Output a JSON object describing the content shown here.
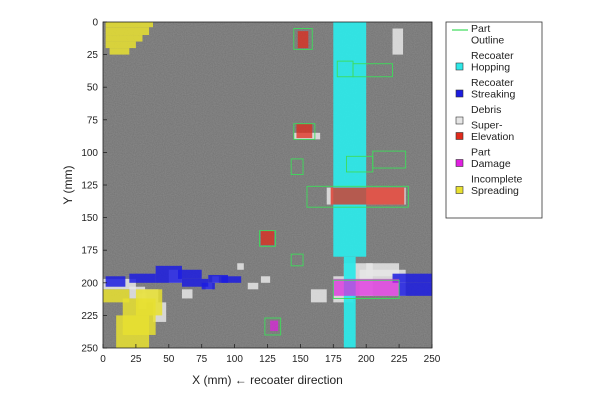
{
  "chart_data": {
    "type": "heatmap",
    "xlabel": "X (mm) ← recoater direction",
    "ylabel": "Y (mm)",
    "xlim": [
      0,
      250
    ],
    "ylim": [
      0,
      250
    ],
    "y_inverted": true,
    "x_ticks": [
      "0",
      "25",
      "50",
      "75",
      "100",
      "125",
      "150",
      "175",
      "200",
      "225",
      "250"
    ],
    "y_ticks": [
      "0",
      "25",
      "50",
      "75",
      "100",
      "125",
      "150",
      "175",
      "200",
      "225",
      "250"
    ],
    "legend_position": "right",
    "legend": [
      {
        "key": "part_outline",
        "lines": [
          "Part",
          "Outline"
        ],
        "color": "#3ddc5a",
        "marker": "line"
      },
      {
        "key": "recoater_hopping",
        "lines": [
          "Recoater",
          "Hopping"
        ],
        "color": "#2ee8e8",
        "marker": "square"
      },
      {
        "key": "recoater_streaking",
        "lines": [
          "Recoater",
          "Streaking"
        ],
        "color": "#1c1ce0",
        "marker": "square"
      },
      {
        "key": "debris",
        "lines": [
          "Debris"
        ],
        "color": "#e6e6e6",
        "marker": "square"
      },
      {
        "key": "super_elevation",
        "lines": [
          "Super-",
          "Elevation"
        ],
        "color": "#e02b1c",
        "marker": "square"
      },
      {
        "key": "part_damage",
        "lines": [
          "Part",
          "Damage"
        ],
        "color": "#e020e0",
        "marker": "square"
      },
      {
        "key": "incomplete_spreading",
        "lines": [
          "Incomplete",
          "Spreading"
        ],
        "color": "#e8e030",
        "marker": "square"
      }
    ],
    "regions": {
      "recoater_hopping": [
        [
          175,
          0,
          200,
          180
        ],
        [
          183,
          180,
          192,
          250
        ]
      ],
      "recoater_streaking": [
        [
          2,
          195,
          17,
          203
        ],
        [
          20,
          193,
          40,
          200
        ],
        [
          40,
          187,
          60,
          200
        ],
        [
          57,
          190,
          75,
          197
        ],
        [
          60,
          197,
          80,
          203
        ],
        [
          75,
          200,
          85,
          205
        ],
        [
          80,
          194,
          95,
          200
        ],
        [
          90,
          195,
          105,
          200
        ],
        [
          220,
          193,
          250,
          200
        ],
        [
          225,
          200,
          250,
          210
        ]
      ],
      "debris": [
        [
          0,
          197,
          25,
          205
        ],
        [
          20,
          203,
          32,
          212
        ],
        [
          27,
          208,
          33,
          220
        ],
        [
          30,
          205,
          42,
          215
        ],
        [
          38,
          215,
          48,
          230
        ],
        [
          50,
          190,
          60,
          200
        ],
        [
          60,
          205,
          68,
          212
        ],
        [
          78,
          200,
          83,
          205
        ],
        [
          83,
          195,
          88,
          200
        ],
        [
          102,
          185,
          107,
          190
        ],
        [
          110,
          200,
          118,
          205
        ],
        [
          120,
          195,
          127,
          200
        ],
        [
          183,
          185,
          205,
          210
        ],
        [
          175,
          195,
          190,
          215
        ],
        [
          195,
          190,
          230,
          210
        ],
        [
          200,
          185,
          225,
          195
        ],
        [
          170,
          127,
          230,
          140
        ],
        [
          145,
          85,
          165,
          90
        ],
        [
          220,
          5,
          228,
          25
        ],
        [
          158,
          205,
          170,
          215
        ]
      ],
      "super_elevation": [
        [
          148,
          7,
          156,
          20
        ],
        [
          147,
          78,
          159,
          89
        ],
        [
          120,
          160,
          130,
          171
        ],
        [
          173,
          127,
          229,
          140
        ]
      ],
      "part_damage": [
        [
          175,
          197,
          225,
          210
        ],
        [
          127,
          229,
          133,
          237
        ]
      ],
      "incomplete_spreading": [
        [
          2,
          0,
          38,
          4
        ],
        [
          2,
          4,
          35,
          10
        ],
        [
          2,
          10,
          30,
          15
        ],
        [
          2,
          15,
          25,
          20
        ],
        [
          5,
          20,
          20,
          25
        ],
        [
          10,
          225,
          35,
          250
        ],
        [
          15,
          212,
          40,
          240
        ],
        [
          25,
          205,
          45,
          225
        ],
        [
          0,
          205,
          20,
          215
        ]
      ],
      "part_outline": [
        [
          145,
          5,
          159,
          21
        ],
        [
          145,
          78,
          161,
          90
        ],
        [
          119,
          160,
          131,
          172
        ],
        [
          143,
          178,
          152,
          187
        ],
        [
          123,
          227,
          135,
          240
        ],
        [
          143,
          105,
          152,
          117
        ],
        [
          178,
          30,
          190,
          42
        ],
        [
          190,
          32,
          220,
          42
        ],
        [
          205,
          99,
          230,
          112
        ],
        [
          185,
          103,
          205,
          115
        ],
        [
          155,
          126,
          232,
          142
        ],
        [
          175,
          198,
          225,
          212
        ]
      ]
    }
  }
}
